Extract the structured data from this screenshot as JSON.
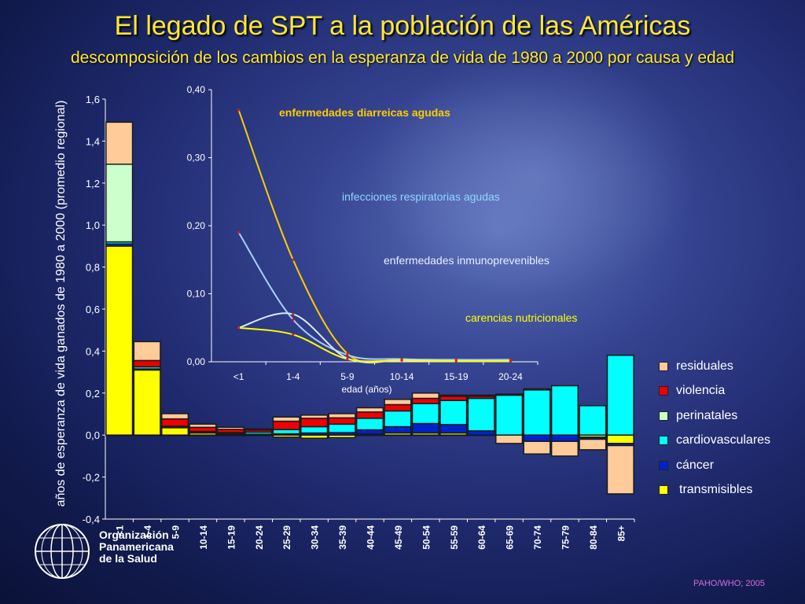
{
  "title": "El legado de SPT a la población de las Américas",
  "subtitle": "descomposición de los cambios en la esperanza de vida de 1980 a 2000 por causa y edad",
  "source_note": "PAHO/WHO; 2005",
  "organization": [
    "Organización",
    "Panamericana",
    "de la Salud"
  ],
  "colors": {
    "transmisibles": "#ffff00",
    "cancer": "#0022cc",
    "cardiovasculares": "#00ffff",
    "perinatales": "#ccffcc",
    "violencia": "#ee0000",
    "residuales": "#ffcc99"
  },
  "chart_data": [
    {
      "type": "bar",
      "stacked": true,
      "ylabel": "años de esperanza de vida ganados de 1980 a 2000 (promedio regional)",
      "ylim": [
        -0.4,
        1.6
      ],
      "yticks": [
        "1,6",
        "1,4",
        "1,2",
        "1,0",
        "0,8",
        "0,6",
        "0,4",
        "0,2",
        "0,0",
        "-0,2",
        "-0,4"
      ],
      "ytick_values": [
        1.6,
        1.4,
        1.2,
        1.0,
        0.8,
        0.6,
        0.4,
        0.2,
        0.0,
        -0.2,
        -0.4
      ],
      "categories": [
        "<1",
        "1-4",
        "5-9",
        "10-14",
        "15-19",
        "20-24",
        "25-29",
        "30-34",
        "35-39",
        "40-44",
        "45-49",
        "50-54",
        "55-59",
        "60-64",
        "65-69",
        "70-74",
        "75-79",
        "80-84",
        "85+"
      ],
      "legend": [
        {
          "key": "residuales",
          "label": "residuales"
        },
        {
          "key": "violencia",
          "label": "violencia"
        },
        {
          "key": "perinatales",
          "label": "perinatales"
        },
        {
          "key": "cardiovasculares",
          "label": "cardiovasculares"
        },
        {
          "key": "cancer",
          "label": "cáncer"
        },
        {
          "key": "transmisibles",
          "label": "transmisibles"
        }
      ],
      "series": [
        {
          "key": "transmisibles",
          "name": "transmisibles",
          "values": [
            0.9,
            0.31,
            0.035,
            0.01,
            0.005,
            0.0,
            -0.01,
            -0.015,
            -0.012,
            0.005,
            0.01,
            0.01,
            0.01,
            0.0,
            0.0,
            0.0,
            0.0,
            -0.01,
            -0.04
          ]
        },
        {
          "key": "cancer",
          "name": "cáncer",
          "values": [
            0.01,
            0.005,
            0.002,
            0.002,
            0.002,
            0.004,
            0.006,
            0.01,
            0.012,
            0.02,
            0.03,
            0.045,
            0.04,
            0.02,
            0.0,
            -0.03,
            -0.03,
            -0.01,
            -0.01
          ]
        },
        {
          "key": "cardiovasculares",
          "name": "cardiovasculares",
          "values": [
            0.01,
            0.01,
            0.005,
            0.005,
            0.005,
            0.01,
            0.02,
            0.03,
            0.04,
            0.055,
            0.075,
            0.095,
            0.115,
            0.155,
            0.19,
            0.215,
            0.235,
            0.14,
            0.38
          ]
        },
        {
          "key": "perinatales",
          "name": "perinatales",
          "values": [
            0.37,
            0.0,
            0.0,
            0.0,
            0.0,
            0.0,
            0.0,
            0.0,
            0.0,
            0.0,
            0.0,
            0.0,
            0.0,
            0.0,
            0.0,
            0.0,
            0.0,
            0.0,
            0.0
          ]
        },
        {
          "key": "violencia",
          "name": "violencia",
          "values": [
            0.0,
            0.03,
            0.035,
            0.02,
            0.015,
            0.01,
            0.04,
            0.04,
            0.03,
            0.03,
            0.03,
            0.025,
            0.02,
            0.01,
            0.005,
            0.005,
            0.0,
            0.0,
            0.0
          ]
        },
        {
          "key": "residuales",
          "name": "residuales",
          "values": [
            0.2,
            0.09,
            0.025,
            0.015,
            0.01,
            0.005,
            0.02,
            0.015,
            0.02,
            0.02,
            0.025,
            0.025,
            0.005,
            0.005,
            -0.04,
            -0.06,
            -0.07,
            -0.05,
            -0.23
          ]
        }
      ]
    },
    {
      "type": "line",
      "inset": true,
      "xlabel": "edad (años)",
      "categories": [
        "<1",
        "1-4",
        "5-9",
        "10-14",
        "15-19",
        "20-24"
      ],
      "ylim": [
        0.0,
        0.4
      ],
      "yticks": [
        "0,40",
        "0,30",
        "0,20",
        "0,10",
        "0,00"
      ],
      "ytick_values": [
        0.4,
        0.3,
        0.2,
        0.1,
        0.0
      ],
      "series": [
        {
          "name": "enfermedades diarreicas agudas",
          "color": "#ffcc00",
          "values": [
            0.37,
            0.15,
            0.012,
            0.003,
            0.002,
            0.002
          ]
        },
        {
          "name": "infecciones respiratorias agudas",
          "color": "#a8d0ff",
          "values": [
            0.19,
            0.062,
            0.01,
            0.004,
            0.003,
            0.003
          ]
        },
        {
          "name": "enfermedades inmunoprevenibles",
          "color": "#dde8ff",
          "values": [
            0.05,
            0.07,
            0.005,
            0.002,
            0.001,
            0.001
          ]
        },
        {
          "name": "carencias nutricionales",
          "color": "#ffff00",
          "values": [
            0.05,
            0.04,
            0.004,
            0.002,
            0.001,
            0.001
          ]
        }
      ]
    }
  ]
}
